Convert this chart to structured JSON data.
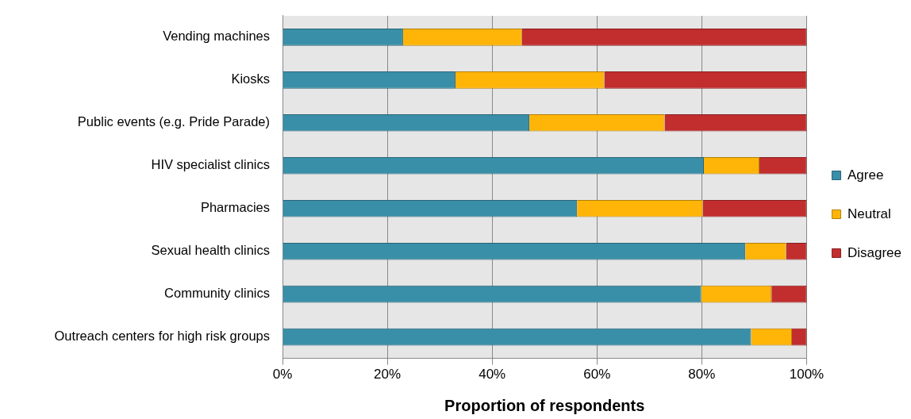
{
  "chart_data": {
    "type": "bar",
    "orientation": "horizontal",
    "stacked": true,
    "categories": [
      "Vending machines",
      "Kiosks",
      "Public events (e.g. Pride Parade)",
      "HIV specialist clinics",
      "Pharmacies",
      "Sexual health clinics",
      "Community clinics",
      "Outreach centers for high risk groups"
    ],
    "series": [
      {
        "name": "Agree",
        "color": "#3a8fa8",
        "values": [
          23.0,
          33.0,
          47.1,
          80.4,
          56.2,
          88.3,
          79.9,
          89.4
        ]
      },
      {
        "name": "Neutral",
        "color": "#ffb508",
        "values": [
          22.7,
          28.4,
          25.8,
          10.6,
          24.0,
          7.8,
          13.4,
          7.8
        ]
      },
      {
        "name": "Disagree",
        "color": "#c22d2e",
        "values": [
          54.3,
          38.6,
          27.1,
          9.0,
          19.8,
          3.9,
          6.7,
          2.8
        ]
      }
    ],
    "xlim": [
      0,
      100
    ],
    "xticks": [
      {
        "value": 0,
        "label": "0%"
      },
      {
        "value": 20,
        "label": "20%"
      },
      {
        "value": 40,
        "label": "40%"
      },
      {
        "value": 60,
        "label": "60%"
      },
      {
        "value": 80,
        "label": "80%"
      },
      {
        "value": 100,
        "label": "100%"
      }
    ],
    "xlabel": "Proportion of respondents",
    "grid": "x",
    "legend": "right"
  }
}
